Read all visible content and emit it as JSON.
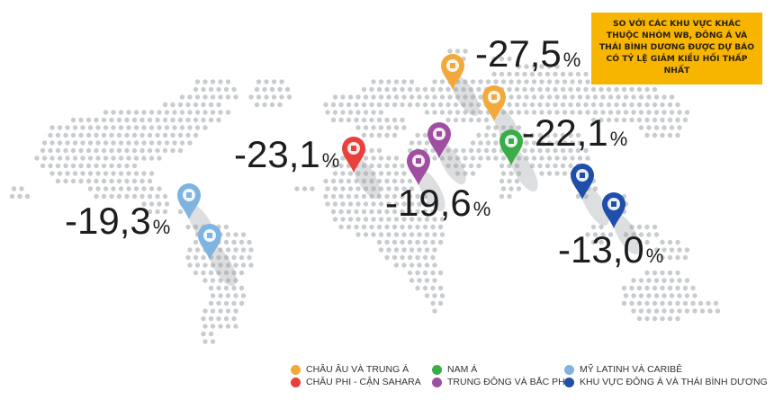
{
  "callout": {
    "text": "SO VỚI CÁC KHU VỰC KHÁC THUỘC NHÓM WB, ĐÔNG Á VÀ THÁI BÌNH DƯƠNG ĐƯỢC DỰ BÁO CÓ TỶ LỆ GIẢM KIỀU HỐI THẤP NHẤT",
    "color": "#f7b500"
  },
  "regions": {
    "europe_central_asia": {
      "label": "CHÂU ÂU VÀ TRUNG Á",
      "value": "-27,5",
      "color": "#f2a93b"
    },
    "south_asia": {
      "label": "NAM Á",
      "value": "-22,1",
      "color": "#3aad48"
    },
    "latin_america": {
      "label": "MỸ LATINH VÀ CARIBÊ",
      "value": "-19,3",
      "color": "#7fb3e0"
    },
    "sub_saharan_africa": {
      "label": "CHÂU PHI - CẬN SAHARA",
      "value": "-23,1",
      "color": "#e8403d"
    },
    "middle_east_north_africa": {
      "label": "TRUNG ĐÔNG VÀ BẮC PHI",
      "value": "-19,6",
      "color": "#a04ea0"
    },
    "east_asia_pacific": {
      "label": "KHU VỰC ĐÔNG Á VÀ THÁI BÌNH DƯƠNG",
      "value": "-13,0",
      "color": "#1f4fa8"
    }
  },
  "percent_symbol": "%",
  "pin_icon": "map-pin-icon",
  "map_dot_color": "#c9cccf"
}
